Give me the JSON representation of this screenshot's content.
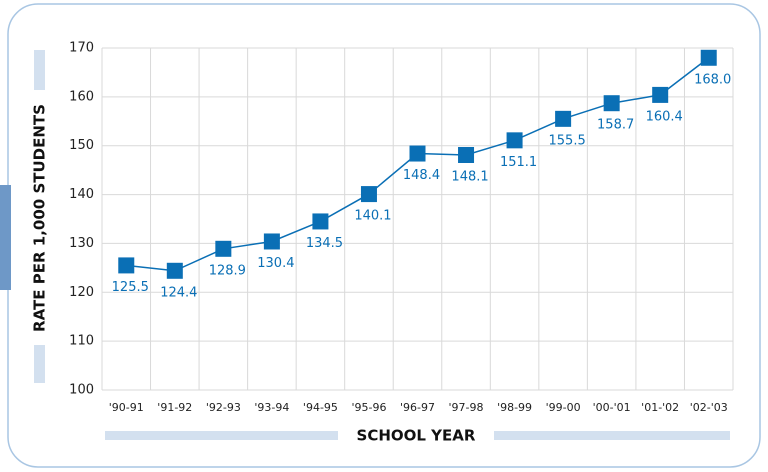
{
  "chart_data": {
    "type": "line",
    "x_label": "SCHOOL YEAR",
    "y_label": "RATE PER 1,000 STUDENTS",
    "categories": [
      "'90-91",
      "'91-92",
      "'92-93",
      "'93-94",
      "'94-95",
      "'95-96",
      "'96-97",
      "'97-98",
      "'98-99",
      "'99-00",
      "'00-'01",
      "'01-'02",
      "'02-'03"
    ],
    "series": [
      {
        "color": "#0a6fb5",
        "values": [
          125.5,
          124.4,
          128.9,
          130.4,
          134.5,
          140.1,
          148.4,
          148.1,
          151.1,
          155.5,
          158.7,
          160.4,
          168.0
        ],
        "value_labels": [
          "125.5",
          "124.4",
          "128.9",
          "130.4",
          "134.5",
          "140.1",
          "148.4",
          "148.1",
          "151.1",
          "155.5",
          "158.7",
          "160.4",
          "168.0"
        ]
      }
    ],
    "ylim": [
      100,
      170
    ],
    "yticks": [
      100,
      110,
      120,
      130,
      140,
      150,
      160,
      170
    ],
    "grid": true
  }
}
